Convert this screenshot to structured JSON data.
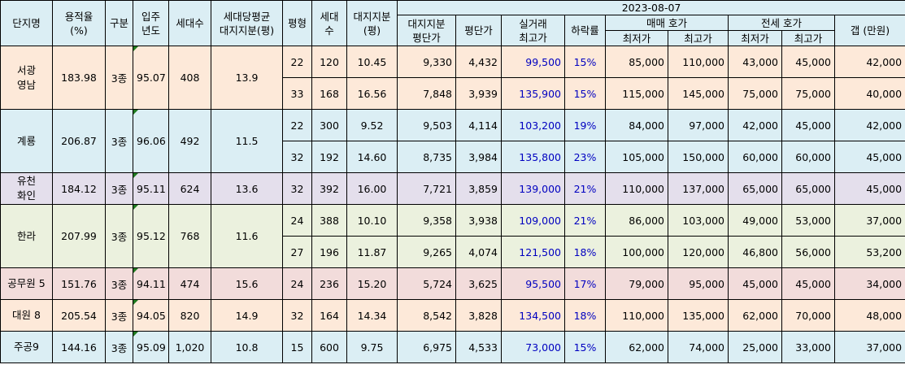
{
  "header": {
    "col_name": "단지명",
    "col_far": "용적율\n(%)",
    "col_type": "구분",
    "col_year": "입주\n년도",
    "col_households": "세대수",
    "col_avg_land": "세대당평균\n대지지분(평)",
    "col_pyeong": "평형",
    "col_unit_households": "세대수",
    "col_land_share": "대지지분\n(평)",
    "date": "2023-08-07",
    "col_land_price": "대지지분\n평단가",
    "col_pyeong_price": "평단가",
    "col_real_max": "실거래\n최고가",
    "col_drop": "하락률",
    "sale_group": "매매 호가",
    "jeonse_group": "전세 호가",
    "col_min": "최저가",
    "col_max": "최고가",
    "col_min2": "최저가",
    "col_max2": "최고가",
    "col_gap": "갭 (만원)"
  },
  "complexes": [
    {
      "name": "서광\n영남",
      "far": "183.98",
      "type": "3종",
      "year": "95.07",
      "households": "408",
      "avg_land": "13.9",
      "bg": "peach",
      "units": [
        {
          "pyeong": "22",
          "households": "120",
          "land": "10.45",
          "land_price": "9,330",
          "pyeong_price": "4,432",
          "real_max": "99,500",
          "drop": "15%",
          "sale_min": "85,000",
          "sale_max": "110,000",
          "jeonse_min": "43,000",
          "jeonse_max": "45,000",
          "gap": "42,000"
        },
        {
          "pyeong": "33",
          "households": "168",
          "land": "16.56",
          "land_price": "7,848",
          "pyeong_price": "3,939",
          "real_max": "135,900",
          "drop": "15%",
          "sale_min": "115,000",
          "sale_max": "145,000",
          "jeonse_min": "75,000",
          "jeonse_max": "75,000",
          "gap": "40,000"
        }
      ]
    },
    {
      "name": "계룡",
      "far": "206.87",
      "type": "3종",
      "year": "96.06",
      "households": "492",
      "avg_land": "11.5",
      "bg": "blue",
      "units": [
        {
          "pyeong": "22",
          "households": "300",
          "land": "9.52",
          "land_price": "9,503",
          "pyeong_price": "4,114",
          "real_max": "103,200",
          "drop": "19%",
          "sale_min": "84,000",
          "sale_max": "97,000",
          "jeonse_min": "42,000",
          "jeonse_max": "45,000",
          "gap": "42,000"
        },
        {
          "pyeong": "32",
          "households": "192",
          "land": "14.60",
          "land_price": "8,735",
          "pyeong_price": "3,984",
          "real_max": "135,800",
          "drop": "23%",
          "sale_min": "105,000",
          "sale_max": "150,000",
          "jeonse_min": "60,000",
          "jeonse_max": "60,000",
          "gap": "45,000"
        }
      ]
    },
    {
      "name": "유천\n화인",
      "far": "184.12",
      "type": "3종",
      "year": "95.11",
      "households": "624",
      "avg_land": "13.6",
      "bg": "lav",
      "units": [
        {
          "pyeong": "32",
          "households": "392",
          "land": "16.00",
          "land_price": "7,721",
          "pyeong_price": "3,859",
          "real_max": "139,000",
          "drop": "21%",
          "sale_min": "110,000",
          "sale_max": "137,000",
          "jeonse_min": "65,000",
          "jeonse_max": "65,000",
          "gap": "45,000"
        }
      ]
    },
    {
      "name": "한라",
      "far": "207.99",
      "type": "3종",
      "year": "95.12",
      "households": "768",
      "avg_land": "11.6",
      "bg": "green",
      "units": [
        {
          "pyeong": "24",
          "households": "388",
          "land": "10.10",
          "land_price": "9,358",
          "pyeong_price": "3,938",
          "real_max": "109,000",
          "drop": "21%",
          "sale_min": "86,000",
          "sale_max": "103,000",
          "jeonse_min": "49,000",
          "jeonse_max": "53,000",
          "gap": "37,000"
        },
        {
          "pyeong": "27",
          "households": "196",
          "land": "11.87",
          "land_price": "9,265",
          "pyeong_price": "4,074",
          "real_max": "121,500",
          "drop": "18%",
          "sale_min": "100,000",
          "sale_max": "120,000",
          "jeonse_min": "46,800",
          "jeonse_max": "56,000",
          "gap": "53,200"
        }
      ]
    },
    {
      "name": "공무원 5",
      "far": "151.76",
      "type": "3종",
      "year": "94.11",
      "households": "474",
      "avg_land": "15.6",
      "bg": "pink",
      "units": [
        {
          "pyeong": "24",
          "households": "236",
          "land": "15.20",
          "land_price": "5,724",
          "pyeong_price": "3,625",
          "real_max": "95,500",
          "drop": "17%",
          "sale_min": "79,000",
          "sale_max": "95,000",
          "jeonse_min": "45,000",
          "jeonse_max": "45,000",
          "gap": "34,000"
        }
      ]
    },
    {
      "name": "대원 8",
      "far": "205.54",
      "type": "3종",
      "year": "94.05",
      "households": "820",
      "avg_land": "14.9",
      "bg": "pale",
      "units": [
        {
          "pyeong": "32",
          "households": "164",
          "land": "14.34",
          "land_price": "8,542",
          "pyeong_price": "3,828",
          "real_max": "134,500",
          "drop": "18%",
          "sale_min": "110,000",
          "sale_max": "135,000",
          "jeonse_min": "62,000",
          "jeonse_max": "70,000",
          "gap": "48,000"
        }
      ]
    },
    {
      "name": "주공9",
      "far": "144.16",
      "type": "3종",
      "year": "95.09",
      "households": "1,020",
      "avg_land": "10.8",
      "bg": "blue",
      "units": [
        {
          "pyeong": "15",
          "households": "600",
          "land": "9.75",
          "land_price": "6,975",
          "pyeong_price": "4,533",
          "real_max": "73,000",
          "drop": "15%",
          "sale_min": "62,000",
          "sale_max": "74,000",
          "jeonse_min": "25,000",
          "jeonse_max": "33,000",
          "gap": "37,000"
        }
      ]
    }
  ]
}
